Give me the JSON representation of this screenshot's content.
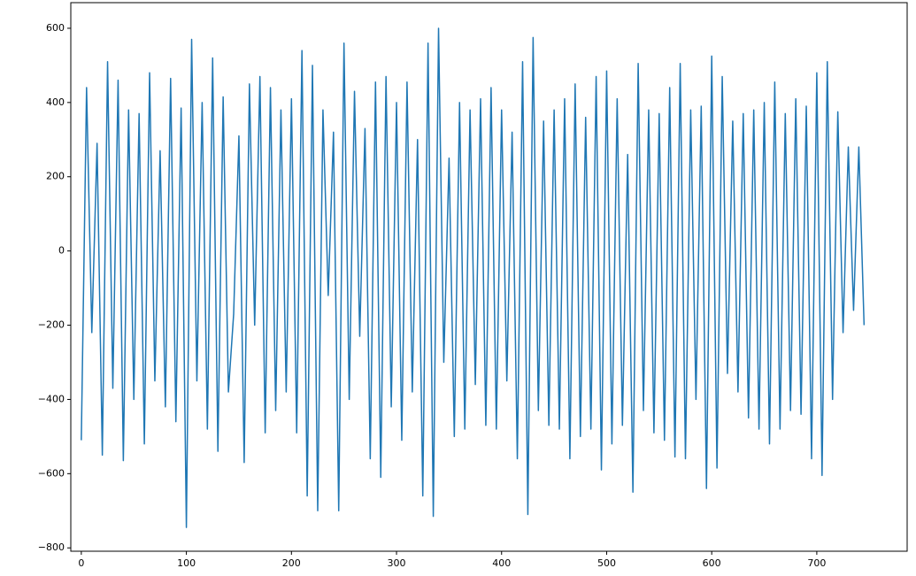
{
  "chart_data": {
    "type": "line",
    "color": "#1f77b4",
    "x": [
      0,
      5,
      10,
      15,
      20,
      25,
      30,
      35,
      40,
      45,
      50,
      55,
      60,
      65,
      70,
      75,
      80,
      85,
      90,
      95,
      100,
      105,
      110,
      115,
      120,
      125,
      130,
      135,
      140,
      145,
      150,
      155,
      160,
      165,
      170,
      175,
      180,
      185,
      190,
      195,
      200,
      205,
      210,
      215,
      220,
      225,
      230,
      235,
      240,
      245,
      250,
      255,
      260,
      265,
      270,
      275,
      280,
      285,
      290,
      295,
      300,
      305,
      310,
      315,
      320,
      325,
      330,
      335,
      340,
      345,
      350,
      355,
      360,
      365,
      370,
      375,
      380,
      385,
      390,
      395,
      400,
      405,
      410,
      415,
      420,
      425,
      430,
      435,
      440,
      445,
      450,
      455,
      460,
      465,
      470,
      475,
      480,
      485,
      490,
      495,
      500,
      505,
      510,
      515,
      520,
      525,
      530,
      535,
      540,
      545,
      550,
      555,
      560,
      565,
      570,
      575,
      580,
      585,
      590,
      595,
      600,
      605,
      610,
      615,
      620,
      625,
      630,
      635,
      640,
      645,
      650,
      655,
      660,
      665,
      670,
      675,
      680,
      685,
      690,
      695,
      700,
      705,
      710,
      715,
      720,
      725,
      730,
      735,
      740,
      745
    ],
    "values": [
      -510,
      440,
      -220,
      290,
      -550,
      510,
      -370,
      460,
      -565,
      380,
      -400,
      370,
      -520,
      480,
      -350,
      270,
      -420,
      465,
      -460,
      385,
      -745,
      570,
      -350,
      400,
      -480,
      520,
      -540,
      415,
      -380,
      -170,
      310,
      -570,
      450,
      -200,
      470,
      -490,
      440,
      -430,
      380,
      -380,
      410,
      -490,
      540,
      -660,
      500,
      -700,
      380,
      -120,
      320,
      -700,
      560,
      -400,
      430,
      -230,
      330,
      -560,
      455,
      -610,
      470,
      -420,
      400,
      -510,
      455,
      -380,
      300,
      -660,
      560,
      -715,
      600,
      -300,
      250,
      -500,
      400,
      -480,
      380,
      -360,
      410,
      -470,
      440,
      -480,
      380,
      -350,
      320,
      -560,
      510,
      -710,
      575,
      -430,
      350,
      -470,
      380,
      -480,
      410,
      -560,
      450,
      -500,
      360,
      -480,
      470,
      -590,
      485,
      -520,
      410,
      -470,
      260,
      -650,
      505,
      -430,
      380,
      -490,
      370,
      -510,
      440,
      -555,
      505,
      -560,
      380,
      -400,
      390,
      -640,
      525,
      -585,
      470,
      -330,
      350,
      -380,
      370,
      -450,
      380,
      -480,
      400,
      -520,
      455,
      -480,
      370,
      -430,
      410,
      -440,
      390,
      -560,
      480,
      -605,
      510,
      -400,
      375,
      -220,
      280,
      -160,
      280,
      -200
    ],
    "xlim": [
      -10,
      786
    ],
    "ylim": [
      -809,
      669
    ],
    "xticks": [
      0,
      100,
      200,
      300,
      400,
      500,
      600,
      700
    ],
    "yticks": [
      {
        "value": -800,
        "label": "−800"
      },
      {
        "value": -600,
        "label": "−600"
      },
      {
        "value": -400,
        "label": "−400"
      },
      {
        "value": -200,
        "label": "−200"
      },
      0,
      200,
      400,
      600
    ]
  }
}
